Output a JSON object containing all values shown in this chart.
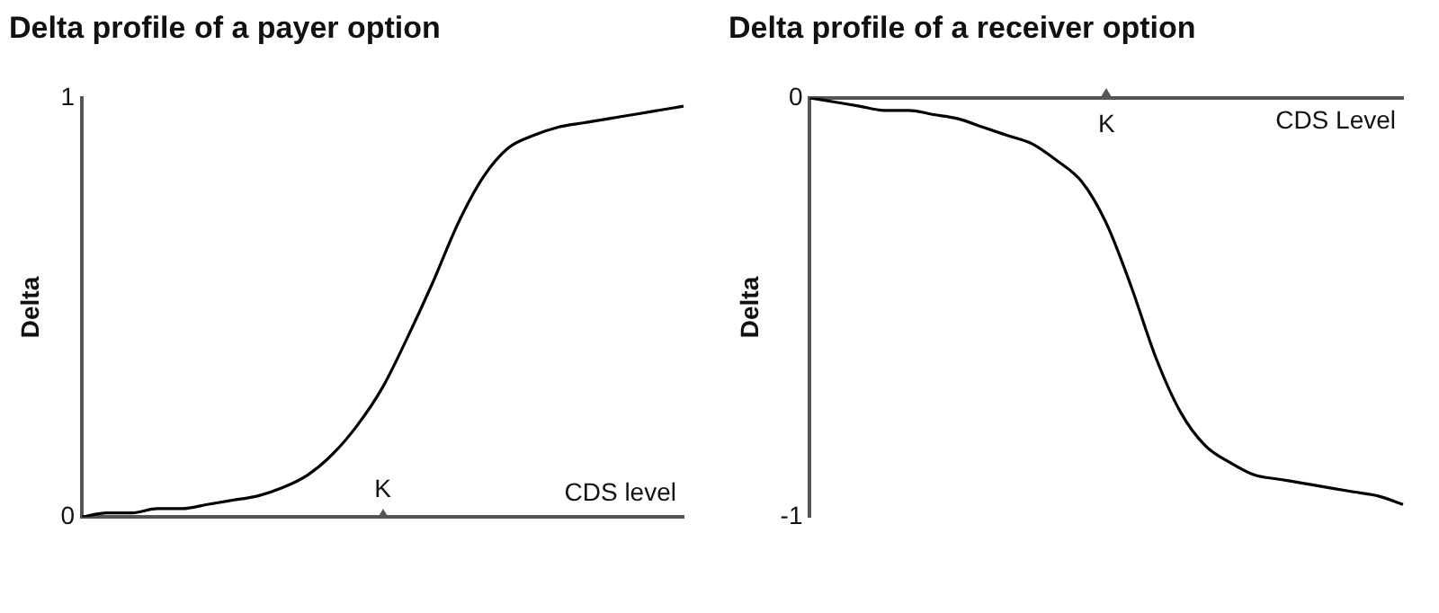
{
  "chart_data": [
    {
      "type": "line",
      "title": "Delta profile of a payer option",
      "ylabel": "Delta",
      "xlabel": "CDS level",
      "annotations": [
        "K"
      ],
      "categories": [
        null,
        null,
        null,
        null,
        null,
        null,
        null,
        null,
        null,
        null,
        null,
        null,
        null,
        null,
        null,
        null,
        null,
        null,
        null,
        null,
        null,
        null,
        null,
        null,
        null
      ],
      "series": [
        {
          "color": "#000000",
          "values": [
            0,
            0.01,
            0.01,
            0.02,
            0.02,
            0.03,
            0.04,
            0.05,
            0.07,
            0.1,
            0.15,
            0.22,
            0.31,
            0.43,
            0.56,
            0.7,
            0.81,
            0.88,
            0.91,
            0.93,
            0.94,
            0.95,
            0.96,
            0.97,
            0.98
          ]
        }
      ],
      "ylim": [
        0,
        1
      ],
      "yticks": [
        0,
        1
      ],
      "grid": false,
      "legend": false,
      "marker": "none"
    },
    {
      "type": "line",
      "title": "Delta profile of a receiver option",
      "ylabel": "Delta",
      "xlabel": "CDS Level",
      "annotations": [
        "K"
      ],
      "categories": [
        null,
        null,
        null,
        null,
        null,
        null,
        null,
        null,
        null,
        null,
        null,
        null,
        null,
        null,
        null,
        null,
        null,
        null,
        null,
        null,
        null,
        null,
        null,
        null,
        null
      ],
      "series": [
        {
          "color": "#000000",
          "values": [
            0,
            -0.01,
            -0.02,
            -0.03,
            -0.03,
            -0.04,
            -0.05,
            -0.07,
            -0.09,
            -0.11,
            -0.15,
            -0.2,
            -0.3,
            -0.45,
            -0.62,
            -0.75,
            -0.83,
            -0.87,
            -0.9,
            -0.91,
            -0.92,
            -0.93,
            -0.94,
            -0.95,
            -0.97
          ]
        }
      ],
      "ylim": [
        -1,
        0
      ],
      "yticks": [
        -1,
        0
      ],
      "grid": false,
      "legend": false,
      "marker": "none"
    }
  ]
}
